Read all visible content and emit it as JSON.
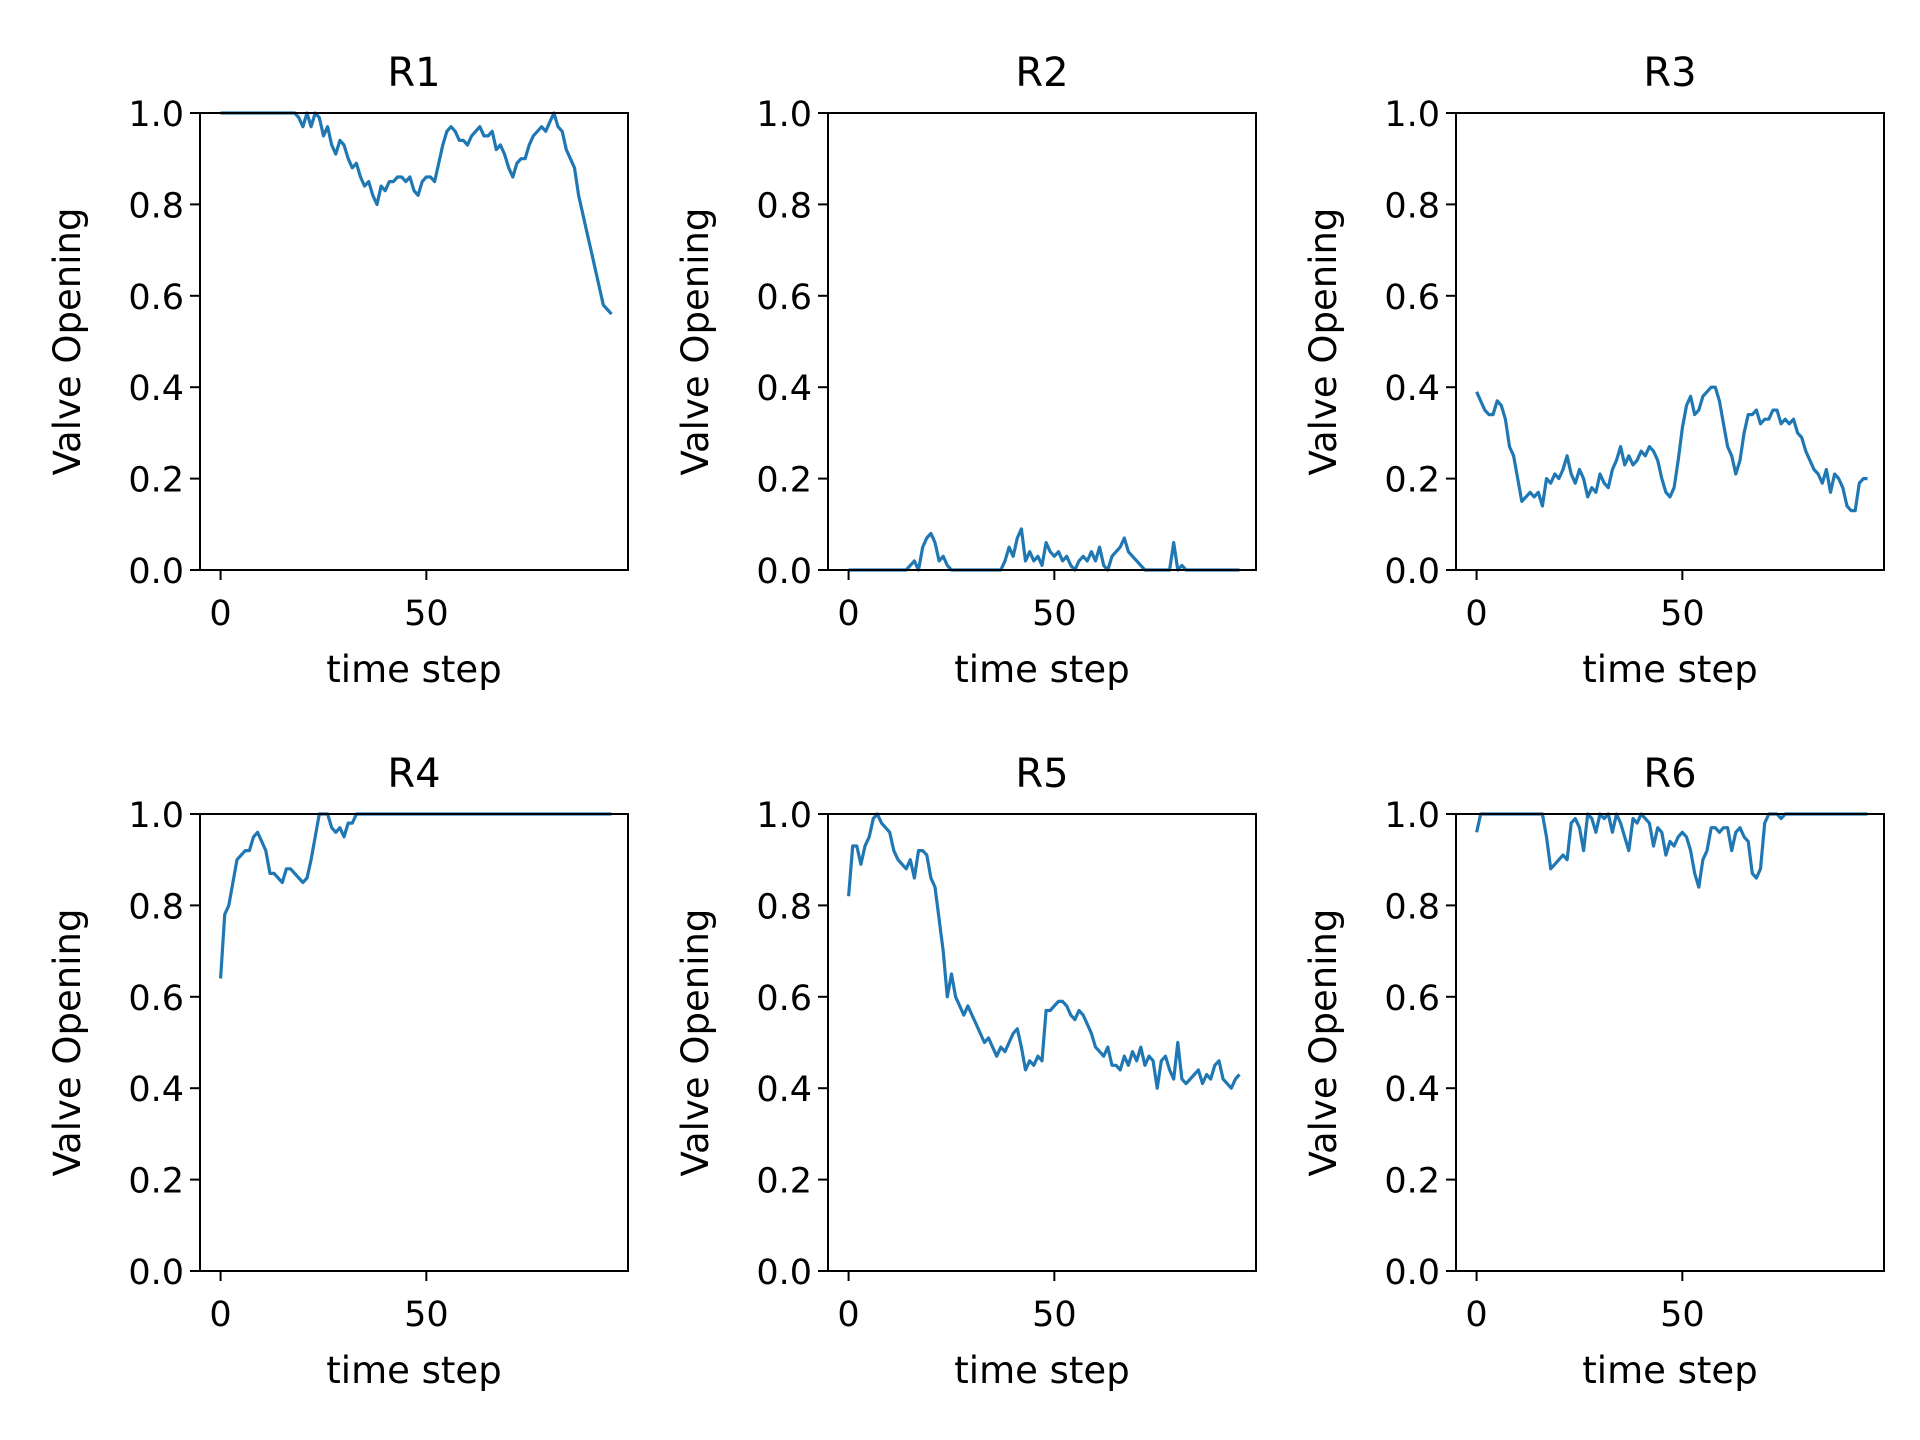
{
  "figure": {
    "rows": 2,
    "cols": 3,
    "line_color": "#1f77b4"
  },
  "chart_data": [
    {
      "type": "line",
      "title": "R1",
      "xlabel": "time step",
      "ylabel": "Valve Opening",
      "xlim": [
        -5,
        99
      ],
      "ylim": [
        0,
        1
      ],
      "x_ticks": [
        0,
        50
      ],
      "y_ticks": [
        "0.0",
        "0.2",
        "0.4",
        "0.6",
        "0.8",
        "1.0"
      ],
      "series": [
        {
          "x": [
            0,
            2,
            4,
            6,
            8,
            10,
            12,
            14,
            16,
            18,
            19,
            20,
            21,
            22,
            23,
            24,
            25,
            26,
            27,
            28,
            29,
            30,
            31,
            32,
            33,
            34,
            35,
            36,
            37,
            38,
            39,
            40,
            41,
            42,
            43,
            44,
            45,
            46,
            47,
            48,
            49,
            50,
            51,
            52,
            53,
            54,
            55,
            56,
            57,
            58,
            59,
            60,
            61,
            62,
            63,
            64,
            65,
            66,
            67,
            68,
            69,
            70,
            71,
            72,
            73,
            74,
            75,
            76,
            77,
            78,
            79,
            80,
            81,
            82,
            83,
            84,
            85,
            86,
            87,
            88,
            89,
            90,
            91,
            92,
            93,
            94,
            95
          ],
          "y": [
            1.0,
            1.0,
            1.0,
            1.0,
            1.0,
            1.0,
            1.0,
            1.0,
            1.0,
            1.0,
            0.99,
            0.97,
            1.0,
            0.97,
            1.0,
            0.99,
            0.95,
            0.97,
            0.93,
            0.91,
            0.94,
            0.93,
            0.9,
            0.88,
            0.89,
            0.86,
            0.84,
            0.85,
            0.82,
            0.8,
            0.84,
            0.83,
            0.85,
            0.85,
            0.86,
            0.86,
            0.85,
            0.86,
            0.83,
            0.82,
            0.85,
            0.86,
            0.86,
            0.85,
            0.89,
            0.93,
            0.96,
            0.97,
            0.96,
            0.94,
            0.94,
            0.93,
            0.95,
            0.96,
            0.97,
            0.95,
            0.95,
            0.96,
            0.92,
            0.93,
            0.91,
            0.88,
            0.86,
            0.89,
            0.9,
            0.9,
            0.93,
            0.95,
            0.96,
            0.97,
            0.96,
            0.98,
            1.0,
            0.97,
            0.96,
            0.92,
            0.9,
            0.88,
            0.82,
            0.78,
            0.74,
            0.7,
            0.66,
            0.62,
            0.58,
            0.57,
            0.56
          ]
        }
      ]
    },
    {
      "type": "line",
      "title": "R2",
      "xlabel": "time step",
      "ylabel": "Valve Opening",
      "xlim": [
        -5,
        99
      ],
      "ylim": [
        0,
        1
      ],
      "x_ticks": [
        0,
        50
      ],
      "y_ticks": [
        "0.0",
        "0.2",
        "0.4",
        "0.6",
        "0.8",
        "1.0"
      ],
      "series": [
        {
          "x": [
            0,
            2,
            4,
            6,
            8,
            10,
            12,
            14,
            15,
            16,
            17,
            18,
            19,
            20,
            21,
            22,
            23,
            24,
            25,
            26,
            27,
            28,
            29,
            30,
            31,
            32,
            33,
            34,
            35,
            36,
            37,
            38,
            39,
            40,
            41,
            42,
            43,
            44,
            45,
            46,
            47,
            48,
            49,
            50,
            51,
            52,
            53,
            54,
            55,
            56,
            57,
            58,
            59,
            60,
            61,
            62,
            63,
            64,
            65,
            66,
            67,
            68,
            69,
            70,
            71,
            72,
            73,
            74,
            75,
            76,
            77,
            78,
            79,
            80,
            81,
            82,
            84,
            86,
            88,
            90,
            92,
            94,
            95
          ],
          "y": [
            0,
            0,
            0,
            0,
            0,
            0,
            0,
            0,
            0.01,
            0.02,
            0,
            0.05,
            0.07,
            0.08,
            0.06,
            0.02,
            0.03,
            0.01,
            0,
            0,
            0,
            0,
            0,
            0,
            0,
            0,
            0,
            0,
            0,
            0,
            0,
            0.02,
            0.05,
            0.03,
            0.07,
            0.09,
            0.02,
            0.04,
            0.02,
            0.03,
            0.01,
            0.06,
            0.04,
            0.03,
            0.04,
            0.02,
            0.03,
            0.01,
            0,
            0.02,
            0.03,
            0.02,
            0.04,
            0.02,
            0.05,
            0.01,
            0,
            0.03,
            0.04,
            0.05,
            0.07,
            0.04,
            0.03,
            0.02,
            0.01,
            0,
            0,
            0,
            0,
            0,
            0,
            0,
            0.06,
            0,
            0.01,
            0,
            0,
            0,
            0,
            0,
            0,
            0,
            0
          ]
        }
      ]
    },
    {
      "type": "line",
      "title": "R3",
      "xlabel": "time step",
      "ylabel": "Valve Opening",
      "xlim": [
        -5,
        99
      ],
      "ylim": [
        0,
        1
      ],
      "x_ticks": [
        0,
        50
      ],
      "y_ticks": [
        "0.0",
        "0.2",
        "0.4",
        "0.6",
        "0.8",
        "1.0"
      ],
      "series": [
        {
          "x": [
            0,
            1,
            2,
            3,
            4,
            5,
            6,
            7,
            8,
            9,
            10,
            11,
            12,
            13,
            14,
            15,
            16,
            17,
            18,
            19,
            20,
            21,
            22,
            23,
            24,
            25,
            26,
            27,
            28,
            29,
            30,
            31,
            32,
            33,
            34,
            35,
            36,
            37,
            38,
            39,
            40,
            41,
            42,
            43,
            44,
            45,
            46,
            47,
            48,
            49,
            50,
            51,
            52,
            53,
            54,
            55,
            56,
            57,
            58,
            59,
            60,
            61,
            62,
            63,
            64,
            65,
            66,
            67,
            68,
            69,
            70,
            71,
            72,
            73,
            74,
            75,
            76,
            77,
            78,
            79,
            80,
            81,
            82,
            83,
            84,
            85,
            86,
            87,
            88,
            89,
            90,
            91,
            92,
            93,
            94,
            95
          ],
          "y": [
            0.39,
            0.37,
            0.35,
            0.34,
            0.34,
            0.37,
            0.36,
            0.33,
            0.27,
            0.25,
            0.2,
            0.15,
            0.16,
            0.17,
            0.16,
            0.17,
            0.14,
            0.2,
            0.19,
            0.21,
            0.2,
            0.22,
            0.25,
            0.21,
            0.19,
            0.22,
            0.2,
            0.16,
            0.18,
            0.17,
            0.21,
            0.19,
            0.18,
            0.22,
            0.24,
            0.27,
            0.23,
            0.25,
            0.23,
            0.24,
            0.26,
            0.25,
            0.27,
            0.26,
            0.24,
            0.2,
            0.17,
            0.16,
            0.18,
            0.24,
            0.31,
            0.36,
            0.38,
            0.34,
            0.35,
            0.38,
            0.39,
            0.4,
            0.4,
            0.37,
            0.32,
            0.27,
            0.25,
            0.21,
            0.24,
            0.3,
            0.34,
            0.34,
            0.35,
            0.32,
            0.33,
            0.33,
            0.35,
            0.35,
            0.32,
            0.33,
            0.32,
            0.33,
            0.3,
            0.29,
            0.26,
            0.24,
            0.22,
            0.21,
            0.19,
            0.22,
            0.17,
            0.21,
            0.2,
            0.18,
            0.14,
            0.13,
            0.13,
            0.19,
            0.2,
            0.2
          ]
        }
      ]
    },
    {
      "type": "line",
      "title": "R4",
      "xlabel": "time step",
      "ylabel": "Valve Opening",
      "xlim": [
        -5,
        99
      ],
      "ylim": [
        0,
        1
      ],
      "x_ticks": [
        0,
        50
      ],
      "y_ticks": [
        "0.0",
        "0.2",
        "0.4",
        "0.6",
        "0.8",
        "1.0"
      ],
      "series": [
        {
          "x": [
            0,
            1,
            2,
            3,
            4,
            5,
            6,
            7,
            8,
            9,
            10,
            11,
            12,
            13,
            14,
            15,
            16,
            17,
            18,
            19,
            20,
            21,
            22,
            23,
            24,
            25,
            26,
            27,
            28,
            29,
            30,
            31,
            32,
            33,
            34,
            35,
            36,
            37,
            38,
            39,
            40,
            42,
            44,
            46,
            48,
            50,
            55,
            60,
            65,
            70,
            75,
            80,
            85,
            90,
            95
          ],
          "y": [
            0.64,
            0.78,
            0.8,
            0.85,
            0.9,
            0.91,
            0.92,
            0.92,
            0.95,
            0.96,
            0.94,
            0.92,
            0.87,
            0.87,
            0.86,
            0.85,
            0.88,
            0.88,
            0.87,
            0.86,
            0.85,
            0.86,
            0.9,
            0.95,
            1.0,
            1.0,
            1.0,
            0.97,
            0.96,
            0.97,
            0.95,
            0.98,
            0.98,
            1.0,
            1.0,
            1.0,
            1.0,
            1.0,
            1.0,
            1.0,
            1.0,
            1.0,
            1.0,
            1.0,
            1.0,
            1.0,
            1.0,
            1.0,
            1.0,
            1.0,
            1.0,
            1.0,
            1.0,
            1.0,
            1.0
          ]
        }
      ]
    },
    {
      "type": "line",
      "title": "R5",
      "xlabel": "time step",
      "ylabel": "Valve Opening",
      "xlim": [
        -5,
        99
      ],
      "ylim": [
        0,
        1
      ],
      "x_ticks": [
        0,
        50
      ],
      "y_ticks": [
        "0.0",
        "0.2",
        "0.4",
        "0.6",
        "0.8",
        "1.0"
      ],
      "series": [
        {
          "x": [
            0,
            1,
            2,
            3,
            4,
            5,
            6,
            7,
            8,
            9,
            10,
            11,
            12,
            13,
            14,
            15,
            16,
            17,
            18,
            19,
            20,
            21,
            22,
            23,
            24,
            25,
            26,
            27,
            28,
            29,
            30,
            31,
            32,
            33,
            34,
            35,
            36,
            37,
            38,
            39,
            40,
            41,
            42,
            43,
            44,
            45,
            46,
            47,
            48,
            49,
            50,
            51,
            52,
            53,
            54,
            55,
            56,
            57,
            58,
            59,
            60,
            61,
            62,
            63,
            64,
            65,
            66,
            67,
            68,
            69,
            70,
            71,
            72,
            73,
            74,
            75,
            76,
            77,
            78,
            79,
            80,
            81,
            82,
            83,
            84,
            85,
            86,
            87,
            88,
            89,
            90,
            91,
            92,
            93,
            94,
            95
          ],
          "y": [
            0.82,
            0.93,
            0.93,
            0.89,
            0.93,
            0.95,
            0.99,
            1.0,
            0.98,
            0.97,
            0.96,
            0.92,
            0.9,
            0.89,
            0.88,
            0.9,
            0.86,
            0.92,
            0.92,
            0.91,
            0.86,
            0.84,
            0.77,
            0.7,
            0.6,
            0.65,
            0.6,
            0.58,
            0.56,
            0.58,
            0.56,
            0.54,
            0.52,
            0.5,
            0.51,
            0.49,
            0.47,
            0.49,
            0.48,
            0.5,
            0.52,
            0.53,
            0.49,
            0.44,
            0.46,
            0.45,
            0.47,
            0.46,
            0.57,
            0.57,
            0.58,
            0.59,
            0.59,
            0.58,
            0.56,
            0.55,
            0.57,
            0.56,
            0.54,
            0.52,
            0.49,
            0.48,
            0.47,
            0.49,
            0.45,
            0.45,
            0.44,
            0.47,
            0.45,
            0.48,
            0.46,
            0.49,
            0.45,
            0.47,
            0.46,
            0.4,
            0.46,
            0.47,
            0.44,
            0.42,
            0.5,
            0.42,
            0.41,
            0.42,
            0.43,
            0.44,
            0.41,
            0.43,
            0.42,
            0.45,
            0.46,
            0.42,
            0.41,
            0.4,
            0.42,
            0.43
          ]
        }
      ]
    },
    {
      "type": "line",
      "title": "R6",
      "xlabel": "time step",
      "ylabel": "Valve Opening",
      "xlim": [
        -5,
        99
      ],
      "ylim": [
        0,
        1
      ],
      "x_ticks": [
        0,
        50
      ],
      "y_ticks": [
        "0.0",
        "0.2",
        "0.4",
        "0.6",
        "0.8",
        "1.0"
      ],
      "series": [
        {
          "x": [
            0,
            1,
            2,
            4,
            6,
            8,
            10,
            12,
            14,
            16,
            17,
            18,
            19,
            20,
            21,
            22,
            23,
            24,
            25,
            26,
            27,
            28,
            29,
            30,
            31,
            32,
            33,
            34,
            35,
            36,
            37,
            38,
            39,
            40,
            41,
            42,
            43,
            44,
            45,
            46,
            47,
            48,
            49,
            50,
            51,
            52,
            53,
            54,
            55,
            56,
            57,
            58,
            59,
            60,
            61,
            62,
            63,
            64,
            65,
            66,
            67,
            68,
            69,
            70,
            71,
            72,
            73,
            74,
            75,
            77,
            80,
            85,
            90,
            95
          ],
          "y": [
            0.96,
            1.0,
            1.0,
            1.0,
            1.0,
            1.0,
            1.0,
            1.0,
            1.0,
            1.0,
            0.95,
            0.88,
            0.89,
            0.9,
            0.91,
            0.9,
            0.98,
            0.99,
            0.97,
            0.92,
            1.0,
            0.99,
            0.96,
            1.0,
            0.99,
            1.0,
            0.96,
            1.0,
            0.98,
            0.95,
            0.92,
            0.99,
            0.98,
            1.0,
            0.99,
            0.98,
            0.93,
            0.97,
            0.96,
            0.91,
            0.94,
            0.93,
            0.95,
            0.96,
            0.95,
            0.92,
            0.87,
            0.84,
            0.9,
            0.92,
            0.97,
            0.97,
            0.96,
            0.97,
            0.97,
            0.92,
            0.96,
            0.97,
            0.95,
            0.94,
            0.87,
            0.86,
            0.88,
            0.98,
            1.0,
            1.0,
            1.0,
            0.99,
            1.0,
            1.0,
            1.0,
            1.0,
            1.0,
            1.0
          ]
        }
      ]
    }
  ]
}
